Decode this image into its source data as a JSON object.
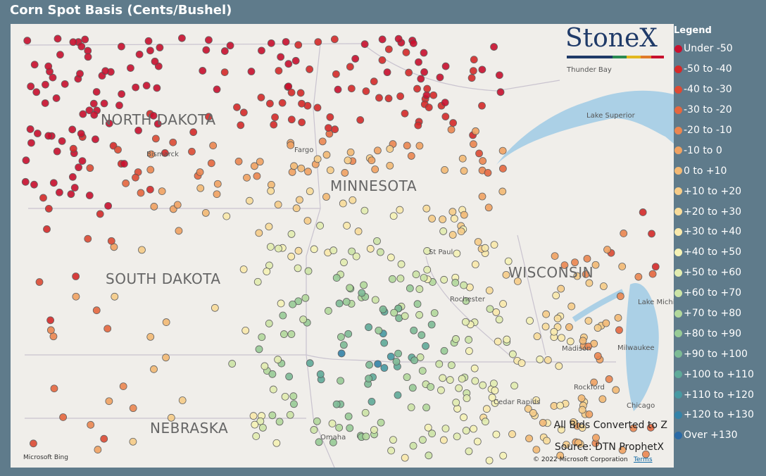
{
  "header": {
    "title": "Corn Spot Basis (Cents/Bushel)"
  },
  "logo": "StoneX",
  "legend": {
    "title": "Legend",
    "items": [
      {
        "label": "Under -50",
        "color": "#c8102e"
      },
      {
        "label": "-50 to -40",
        "color": "#d42a2a"
      },
      {
        "label": "-40 to -30",
        "color": "#dc4a34"
      },
      {
        "label": "-30 to -20",
        "color": "#e5673f"
      },
      {
        "label": "-20 to -10",
        "color": "#eb8650"
      },
      {
        "label": "-10 to 0",
        "color": "#f0a262"
      },
      {
        "label": "0 to +10",
        "color": "#f3b974"
      },
      {
        "label": "+10 to +20",
        "color": "#f6cc88"
      },
      {
        "label": "+20 to +30",
        "color": "#f8dc9a"
      },
      {
        "label": "+30 to +40",
        "color": "#f9e9ab"
      },
      {
        "label": "+40 to +50",
        "color": "#f5f2b5"
      },
      {
        "label": "+50 to +60",
        "color": "#e2ecb0"
      },
      {
        "label": "+60 to +70",
        "color": "#cce4a6"
      },
      {
        "label": "+70 to +80",
        "color": "#b2d89c"
      },
      {
        "label": "+80 to +90",
        "color": "#98cb96"
      },
      {
        "label": "+90 to +100",
        "color": "#7dbb95"
      },
      {
        "label": "+100 to +110",
        "color": "#5faa99"
      },
      {
        "label": "+110 to +120",
        "color": "#4799a2"
      },
      {
        "label": "+120 to +130",
        "color": "#3483a8"
      },
      {
        "label": "Over +130",
        "color": "#2a6aa6"
      }
    ]
  },
  "map": {
    "states": [
      "NORTH DAKOTA",
      "MINNESOTA",
      "SOUTH DAKOTA",
      "WISCONSIN",
      "NEBRASKA"
    ],
    "places": [
      "Thunder Bay",
      "Lake Superior",
      "Bismarck",
      "Fargo",
      "St Paul",
      "Rochester",
      "Lake Michigan",
      "Milwaukee",
      "Madison",
      "Rockford",
      "Chicago",
      "Cedar Rapids",
      "Omaha"
    ],
    "notes": [
      "All Bids Converted to Z",
      "Source: DTN ProphetX"
    ],
    "copyright": "© 2022 Microsoft Corporation",
    "terms": "Terms",
    "attribution": "Microsoft Bing"
  }
}
